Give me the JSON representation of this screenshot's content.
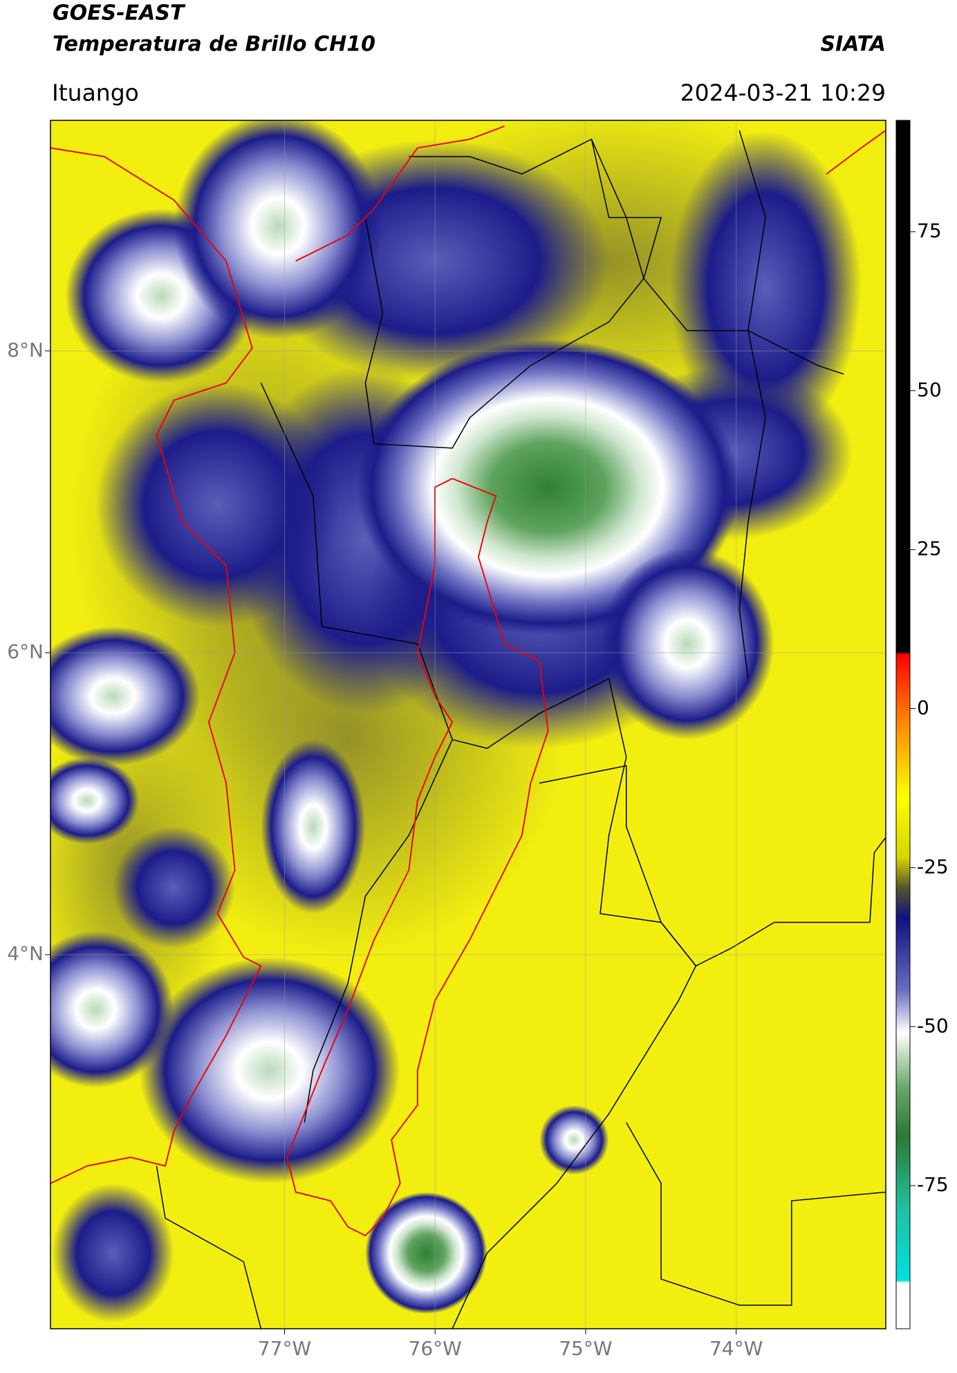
{
  "header": {
    "title": "GOES-EAST",
    "subtitle": "Temperatura de Brillo CH10",
    "brand": "SIATA",
    "place": "Ituango",
    "timestamp": "2024-03-21 10:29"
  },
  "map": {
    "xlim": [
      -78.555,
      -73.006
    ],
    "ylim": [
      1.522,
      9.527
    ],
    "xticks": [
      {
        "value": -77,
        "label": "77°W"
      },
      {
        "value": -76,
        "label": "76°W"
      },
      {
        "value": -75,
        "label": "75°W"
      },
      {
        "value": -74,
        "label": "74°W"
      }
    ],
    "yticks": [
      {
        "value": 8,
        "label": "8°N"
      },
      {
        "value": 6,
        "label": "6°N"
      },
      {
        "value": 4,
        "label": "4°N"
      }
    ],
    "grid": true
  },
  "colorbar": {
    "lim": [
      -97.5,
      92.5
    ],
    "ticks": [
      75,
      50,
      25,
      0,
      -25,
      -50,
      -75
    ]
  }
}
